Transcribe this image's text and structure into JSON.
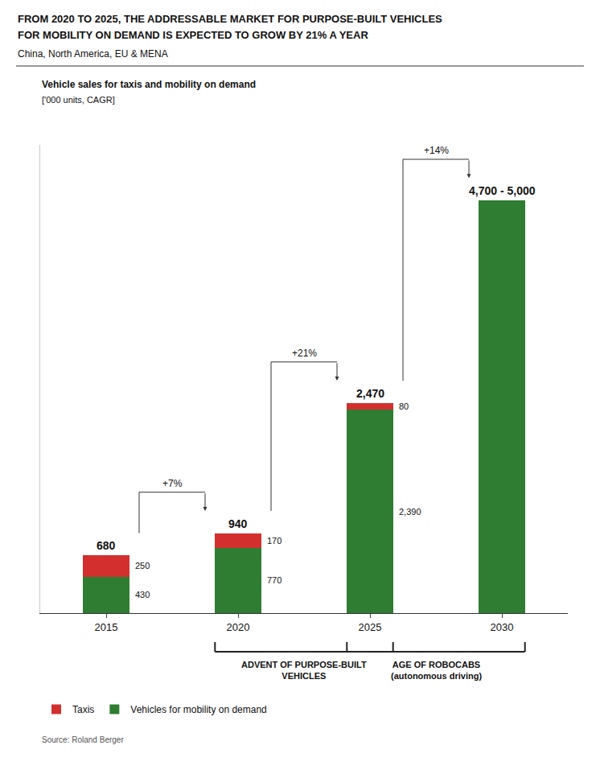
{
  "chart_data": {
    "type": "bar",
    "stacked": true,
    "title": "FROM 2020 TO 2025, THE ADDRESSABLE MARKET FOR PURPOSE-BUILT VEHICLES\nFOR MOBILITY ON DEMAND IS EXPECTED TO GROW BY 21% A YEAR",
    "subtitle": "China, North America, EU & MENA",
    "chart_title": "Vehicle sales for taxis and mobility on demand",
    "chart_subtitle": "['000 units, CAGR]",
    "categories": [
      "2015",
      "2020",
      "2025",
      "2030"
    ],
    "series": [
      {
        "name": "Vehicles for mobility on demand",
        "color": "#2e7d32",
        "values": [
          430,
          770,
          2390,
          4850
        ],
        "value_labels": [
          "430",
          "770",
          "2,390",
          null
        ]
      },
      {
        "name": "Taxis",
        "color": "#d32f2f",
        "values": [
          250,
          170,
          80,
          0
        ],
        "value_labels": [
          "250",
          "170",
          "80",
          null
        ]
      }
    ],
    "data_labels": true,
    "total_labels": [
      "680",
      "940",
      "2,470",
      "4,700 - 5,000"
    ],
    "cagr": [
      {
        "label": "+7%",
        "from": "2015",
        "to": "2020"
      },
      {
        "label": "+21%",
        "from": "2020",
        "to": "2025"
      },
      {
        "label": "+14%",
        "from": "2025",
        "to": "2030"
      }
    ],
    "eras": [
      {
        "label": "ADVENT OF PURPOSE-BUILT\nVEHICLES",
        "from": "2020",
        "to": "2025"
      },
      {
        "label": "AGE OF ROBOCABS\n(autonomous driving)",
        "from": "2025",
        "to": "2030"
      }
    ],
    "ylim": [
      0,
      5500
    ],
    "yticks": [],
    "tick_labels": "x",
    "grid": false,
    "legend": "bottom",
    "source": "Source: Roland Berger"
  }
}
